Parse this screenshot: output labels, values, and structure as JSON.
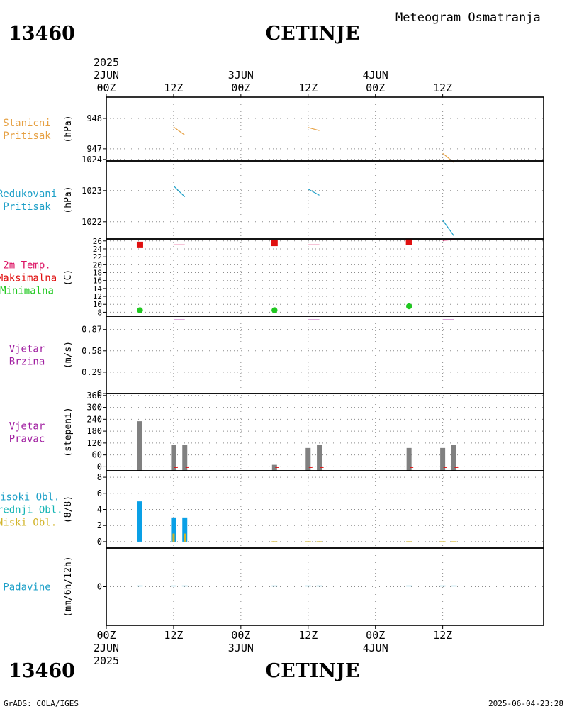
{
  "header": {
    "station_id": "13460",
    "station_name": "CETINJE",
    "subtitle": "Meteogram Osmatranja",
    "source": "GrADS: COLA/IGES",
    "timestamp": "2025-06-04-23:28"
  },
  "time_axis": {
    "year": "2025",
    "start": "2025-06-02T00:00",
    "end": "2025-06-05T06:00",
    "ticks": [
      {
        "t": "2025-06-02T00:00",
        "hour": "00Z",
        "day": "2JUN",
        "year": "2025"
      },
      {
        "t": "2025-06-02T12:00",
        "hour": "12Z",
        "day": "",
        "year": ""
      },
      {
        "t": "2025-06-03T00:00",
        "hour": "00Z",
        "day": "3JUN",
        "year": ""
      },
      {
        "t": "2025-06-03T12:00",
        "hour": "12Z",
        "day": "",
        "year": ""
      },
      {
        "t": "2025-06-04T00:00",
        "hour": "00Z",
        "day": "4JUN",
        "year": ""
      },
      {
        "t": "2025-06-04T12:00",
        "hour": "12Z",
        "day": "",
        "year": ""
      }
    ]
  },
  "colors": {
    "frame": "#000000",
    "grid": "#8c8c8c",
    "station_pressure": "#e6a042",
    "reduced_pressure": "#1ea0c8",
    "temp_title": "#dc1464",
    "tmax": "#e01010",
    "tmin": "#20c820",
    "wind": "#a01ea0",
    "wind_dir_bar": "#808080",
    "high_cloud": "#1ea0c8",
    "mid_cloud": "#14b4b4",
    "low_cloud": "#d2b428",
    "cloud_bar": "#0aa0e6",
    "precip": "#1ea0c8"
  },
  "chart_data": [
    {
      "type": "line",
      "name": "station-pressure",
      "label_lines": [
        "Stanicni",
        "Pritisak"
      ],
      "label_color": "station_pressure",
      "ylabel": "(hPa)",
      "ylim": [
        946.6,
        948.7
      ],
      "yticks": [
        947,
        948
      ],
      "segments": [
        [
          [
            "2025-06-02T12:00",
            947.72
          ],
          [
            "2025-06-02T14:00",
            947.45
          ]
        ],
        [
          [
            "2025-06-03T12:00",
            947.7
          ],
          [
            "2025-06-03T14:00",
            947.6
          ]
        ],
        [
          [
            "2025-06-04T12:00",
            946.85
          ],
          [
            "2025-06-04T14:00",
            946.55
          ]
        ]
      ],
      "color": "station_pressure"
    },
    {
      "type": "line",
      "name": "reduced-pressure",
      "label_lines": [
        "Redukovani",
        "Pritisak"
      ],
      "label_color": "reduced_pressure",
      "ylabel": "(hPa)",
      "ylim": [
        1021.45,
        1023.95
      ],
      "yticks": [
        1022,
        1023,
        1024
      ],
      "segments": [
        [
          [
            "2025-06-02T12:00",
            1023.15
          ],
          [
            "2025-06-02T14:00",
            1022.8
          ]
        ],
        [
          [
            "2025-06-03T12:00",
            1023.05
          ],
          [
            "2025-06-03T14:00",
            1022.85
          ]
        ],
        [
          [
            "2025-06-04T12:00",
            1022.05
          ],
          [
            "2025-06-04T14:00",
            1021.55
          ]
        ]
      ],
      "color": "reduced_pressure"
    },
    {
      "type": "scatter",
      "name": "temperature",
      "label_lines": [
        "2m Temp.",
        "Maksimalna",
        "Minimalna"
      ],
      "label_colors": [
        "temp_title",
        "tmax",
        "tmin"
      ],
      "ylabel": "(C)",
      "ylim": [
        7,
        26.5
      ],
      "yticks": [
        8,
        10,
        12,
        14,
        16,
        18,
        20,
        22,
        24,
        26
      ],
      "tmax": [
        [
          "2025-06-02T06:00",
          25.0
        ],
        [
          "2025-06-03T06:00",
          25.5
        ],
        [
          "2025-06-04T06:00",
          25.8
        ]
      ],
      "tmin": [
        [
          "2025-06-02T06:00",
          8.5
        ],
        [
          "2025-06-03T06:00",
          8.5
        ],
        [
          "2025-06-04T06:00",
          9.5
        ]
      ],
      "marks": [
        [
          [
            "2025-06-02T12:00",
            25.0
          ],
          [
            "2025-06-02T14:00",
            25.0
          ]
        ],
        [
          [
            "2025-06-03T12:00",
            25.0
          ],
          [
            "2025-06-03T14:00",
            25.0
          ]
        ],
        [
          [
            "2025-06-04T12:00",
            26.8
          ],
          [
            "2025-06-04T14:00",
            27.2
          ]
        ]
      ]
    },
    {
      "type": "line",
      "name": "wind-speed",
      "label_lines": [
        "Vjetar",
        "Brzina"
      ],
      "label_color": "wind",
      "ylabel": "(m/s)",
      "ylim": [
        0,
        1.05
      ],
      "yticks": [
        0,
        0.29,
        0.58,
        0.87
      ],
      "segments": [
        [
          [
            "2025-06-02T12:00",
            1.0
          ],
          [
            "2025-06-02T14:00",
            1.0
          ]
        ],
        [
          [
            "2025-06-03T12:00",
            1.0
          ],
          [
            "2025-06-03T14:00",
            1.0
          ]
        ],
        [
          [
            "2025-06-04T12:00",
            1.0
          ],
          [
            "2025-06-04T14:00",
            1.0
          ]
        ]
      ],
      "color": "wind"
    },
    {
      "type": "bar",
      "name": "wind-direction",
      "label_lines": [
        "Vjetar",
        "Pravac"
      ],
      "label_color": "wind",
      "ylabel": "(stepeni)",
      "ylim": [
        -20,
        370
      ],
      "yticks": [
        0,
        60,
        120,
        180,
        240,
        300,
        360
      ],
      "bars": [
        [
          "2025-06-02T06:00",
          230
        ],
        [
          "2025-06-02T12:00",
          110
        ],
        [
          "2025-06-02T14:00",
          110
        ],
        [
          "2025-06-03T06:00",
          10
        ],
        [
          "2025-06-03T12:00",
          95
        ],
        [
          "2025-06-03T14:00",
          110
        ],
        [
          "2025-06-04T06:00",
          95
        ],
        [
          "2025-06-04T12:00",
          95
        ],
        [
          "2025-06-04T14:00",
          110
        ]
      ]
    },
    {
      "type": "bar",
      "name": "cloud-cover",
      "label_lines": [
        "Visoki Obl.",
        "Srednji Obl.",
        "Niski Obl."
      ],
      "label_colors": [
        "high_cloud",
        "mid_cloud",
        "low_cloud"
      ],
      "ylabel": "(8/8)",
      "ylim": [
        -0.8,
        8.8
      ],
      "yticks": [
        0,
        2,
        4,
        6,
        8
      ],
      "bars": [
        {
          "t": "2025-06-02T06:00",
          "total": 5,
          "low": 0
        },
        {
          "t": "2025-06-02T12:00",
          "total": 3,
          "low": 1
        },
        {
          "t": "2025-06-02T14:00",
          "total": 3,
          "low": 1
        }
      ],
      "trace_times": [
        "2025-06-03T06:00",
        "2025-06-03T12:00",
        "2025-06-03T14:00",
        "2025-06-04T06:00",
        "2025-06-04T12:00",
        "2025-06-04T14:00"
      ]
    },
    {
      "type": "bar",
      "name": "precipitation",
      "label_lines": [
        "Padavine"
      ],
      "label_color": "precip",
      "ylabel": "(mm/6h/12h)",
      "ylim": [
        -5,
        5
      ],
      "yticks": [
        0
      ],
      "trace_times": [
        "2025-06-02T06:00",
        "2025-06-02T12:00",
        "2025-06-02T14:00",
        "2025-06-03T06:00",
        "2025-06-03T12:00",
        "2025-06-03T14:00",
        "2025-06-04T06:00",
        "2025-06-04T12:00",
        "2025-06-04T14:00"
      ]
    }
  ]
}
